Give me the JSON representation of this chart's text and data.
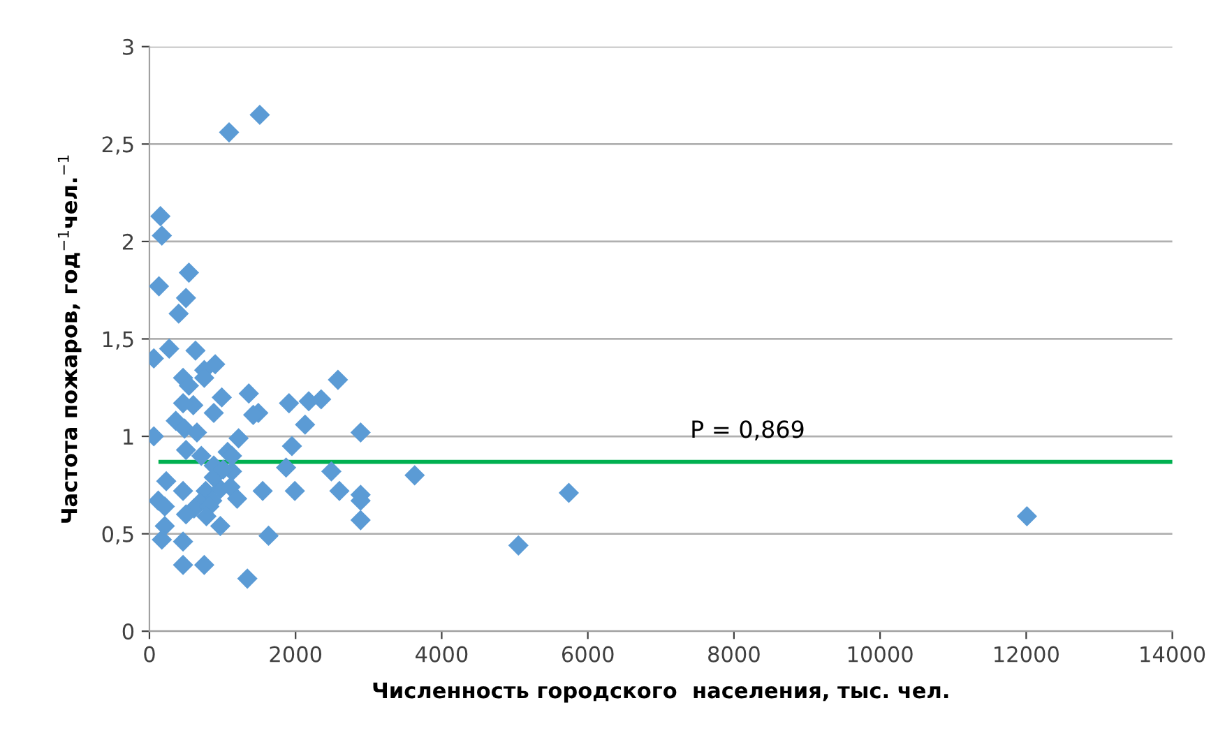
{
  "chart_data": {
    "type": "scatter",
    "xlabel": "Численность городского  населения, тыс. чел.",
    "ylabel": "Частота пожаров, год$^{−1}$чел.$^{−1}$",
    "xlim": [
      0,
      14000
    ],
    "xticks": [
      0,
      2000,
      4000,
      6000,
      8000,
      10000,
      12000,
      14000
    ],
    "ylim": [
      0,
      3
    ],
    "yticks": [
      0,
      {
        "value": 0.5,
        "label": "0,5"
      },
      1,
      {
        "value": 1.5,
        "label": "1,5"
      },
      2,
      {
        "value": 2.5,
        "label": "2,5"
      },
      3
    ],
    "grid": "y",
    "legend": false,
    "annotations": [
      {
        "text": "P = 0,869",
        "x": 7400,
        "y": 0.869
      }
    ],
    "series": [
      {
        "marker": "diamond",
        "color": "#5b9bd5",
        "x": [
          1510,
          1090,
          150,
          170,
          540,
          130,
          500,
          270,
          630,
          400,
          60,
          900,
          750,
          460,
          750,
          2580,
          540,
          1360,
          2350,
          990,
          600,
          2180,
          1910,
          1490,
          880,
          460,
          1420,
          2130,
          360,
          480,
          650,
          60,
          2890,
          1220,
          1070,
          500,
          710,
          1950,
          1130,
          880,
          1870,
          2490,
          3630,
          1130,
          230,
          120,
          460,
          1550,
          2600,
          5740,
          1990,
          2890,
          770,
          970,
          1110,
          860,
          1200,
          2890,
          690,
          610,
          820,
          210,
          780,
          500,
          210,
          12010,
          2890,
          1630,
          170,
          460,
          970,
          5050,
          460,
          750,
          1340,
          880,
          1010
        ],
        "values": [
          2.65,
          2.56,
          2.13,
          2.03,
          1.84,
          1.77,
          1.71,
          1.45,
          1.44,
          1.63,
          1.4,
          1.37,
          1.34,
          1.3,
          1.3,
          1.29,
          1.26,
          1.22,
          1.19,
          1.2,
          1.16,
          1.18,
          1.17,
          1.12,
          1.12,
          1.17,
          1.11,
          1.06,
          1.08,
          1.04,
          1.02,
          1.0,
          1.02,
          0.99,
          0.92,
          0.93,
          0.9,
          0.95,
          0.9,
          0.85,
          0.84,
          0.82,
          0.8,
          0.82,
          0.77,
          0.67,
          0.72,
          0.72,
          0.72,
          0.71,
          0.72,
          0.7,
          0.72,
          0.73,
          0.74,
          0.67,
          0.68,
          0.67,
          0.66,
          0.63,
          0.64,
          0.64,
          0.59,
          0.6,
          0.54,
          0.59,
          0.57,
          0.49,
          0.47,
          0.46,
          0.54,
          0.44,
          0.34,
          0.34,
          0.27,
          0.79,
          0.83
        ]
      },
      {
        "type": "line",
        "marker": "none",
        "color": "#00b050",
        "x": [
          150,
          14000
        ],
        "values": [
          0.869,
          0.869
        ]
      }
    ]
  }
}
